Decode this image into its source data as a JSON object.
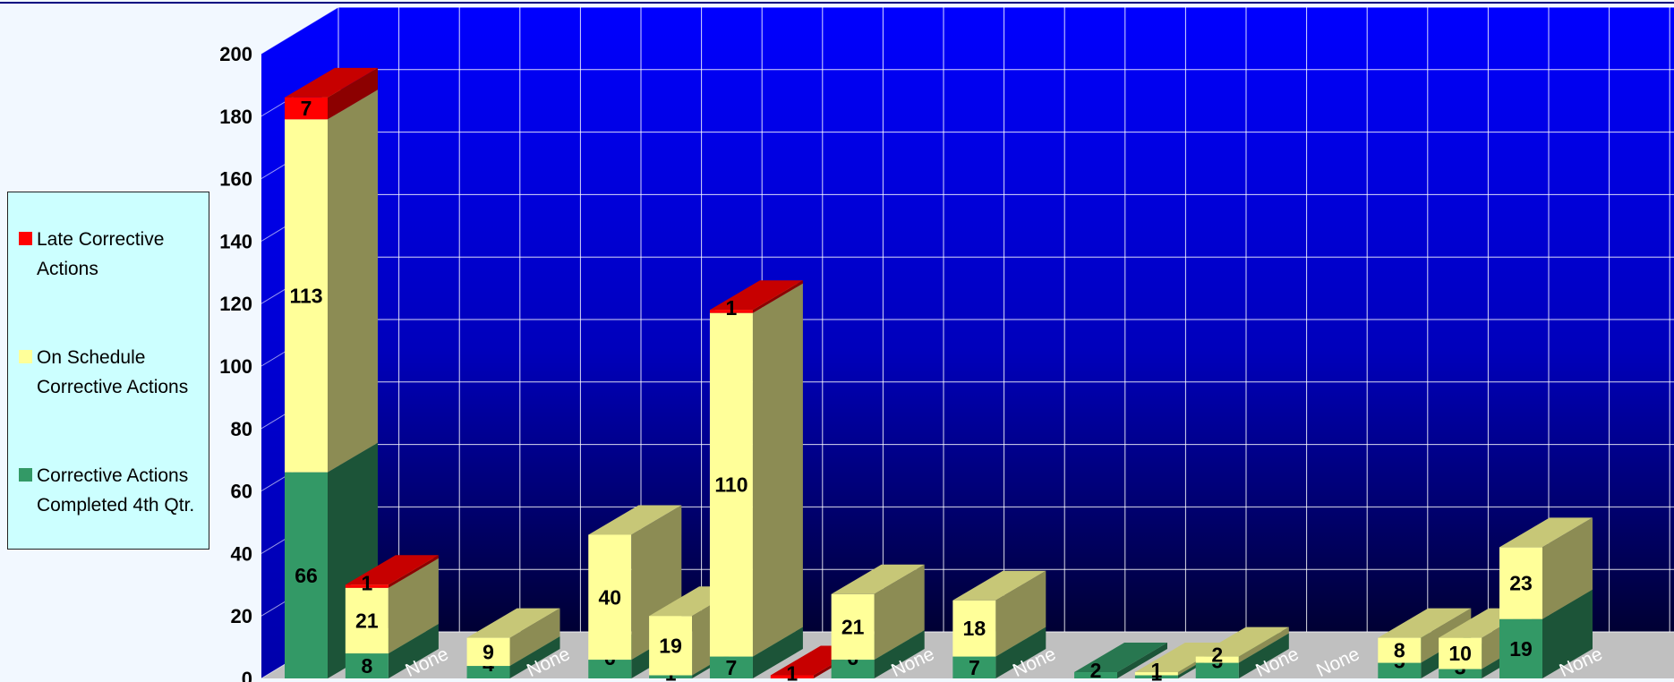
{
  "chart_data": {
    "type": "bar",
    "stacked": true,
    "three_d": true,
    "ylim": [
      0,
      200
    ],
    "y_ticks": [
      0,
      20,
      40,
      60,
      80,
      100,
      120,
      140,
      160,
      180,
      200
    ],
    "grid": true,
    "legend_position": "left",
    "series": [
      {
        "name": "Late Corrective Actions",
        "color": "#ff0000"
      },
      {
        "name": "On Schedule Corrective Actions",
        "color": "#ffff99"
      },
      {
        "name": "Corrective Actions Completed 4th Qtr.",
        "color": "#339966"
      }
    ],
    "bars": [
      {
        "completed": 66,
        "on_schedule": 113,
        "late": 7
      },
      {
        "completed": 8,
        "on_schedule": 21,
        "late": 1
      },
      {
        "none_label": "None"
      },
      {
        "completed": 4,
        "on_schedule": 9
      },
      {
        "none_label": "None"
      },
      {
        "completed": 6,
        "on_schedule": 40
      },
      {
        "completed": 1,
        "on_schedule": 19
      },
      {
        "completed": 7,
        "on_schedule": 110,
        "late": 1
      },
      {
        "late": 1
      },
      {
        "completed": 6,
        "on_schedule": 21
      },
      {
        "none_label": "None"
      },
      {
        "completed": 7,
        "on_schedule": 18
      },
      {
        "none_label": "None"
      },
      {
        "completed": 2
      },
      {
        "completed": 1,
        "on_schedule": 1
      },
      {
        "completed": 5,
        "on_schedule": 2
      },
      {
        "none_label": "None"
      },
      {
        "none_label": "None"
      },
      {
        "completed": 5,
        "on_schedule": 8
      },
      {
        "completed": 3,
        "on_schedule": 10
      },
      {
        "completed": 19,
        "on_schedule": 23
      },
      {
        "none_label": "None"
      }
    ]
  },
  "colors": {
    "wall_top": "#0000ff",
    "wall_bottom": "#000033",
    "grid": "#ffffff",
    "floor": "#c0c0c0",
    "side_wall": "#0000ee"
  }
}
